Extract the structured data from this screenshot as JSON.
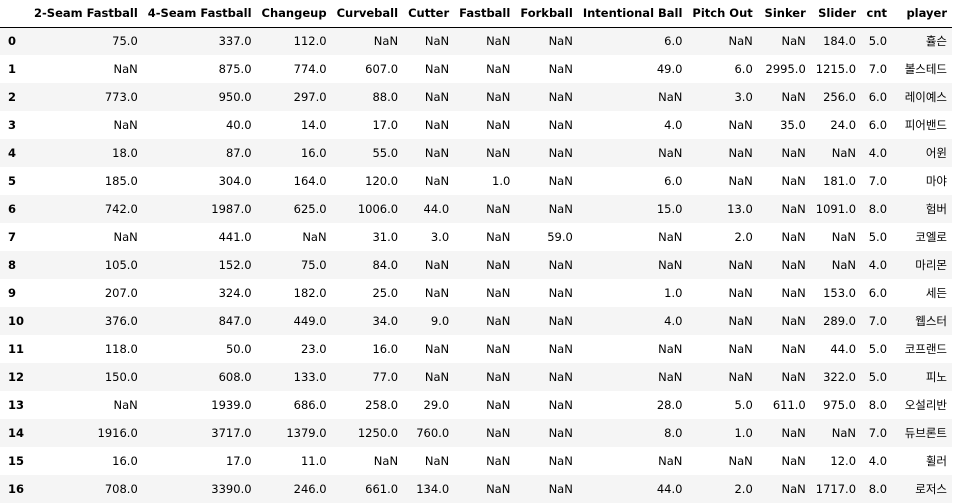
{
  "table": {
    "index_header": "",
    "columns": [
      "2-Seam Fastball",
      "4-Seam Fastball",
      "Changeup",
      "Curveball",
      "Cutter",
      "Fastball",
      "Forkball",
      "Intentional Ball",
      "Pitch Out",
      "Sinker",
      "Slider",
      "cnt",
      "player"
    ],
    "rows": [
      {
        "index": "0",
        "cells": [
          "75.0",
          "337.0",
          "112.0",
          "NaN",
          "NaN",
          "NaN",
          "NaN",
          "6.0",
          "NaN",
          "NaN",
          "184.0",
          "5.0",
          "휼슨"
        ]
      },
      {
        "index": "1",
        "cells": [
          "NaN",
          "875.0",
          "774.0",
          "607.0",
          "NaN",
          "NaN",
          "NaN",
          "49.0",
          "6.0",
          "2995.0",
          "1215.0",
          "7.0",
          "볼스테드"
        ]
      },
      {
        "index": "2",
        "cells": [
          "773.0",
          "950.0",
          "297.0",
          "88.0",
          "NaN",
          "NaN",
          "NaN",
          "NaN",
          "3.0",
          "NaN",
          "256.0",
          "6.0",
          "레이예스"
        ]
      },
      {
        "index": "3",
        "cells": [
          "NaN",
          "40.0",
          "14.0",
          "17.0",
          "NaN",
          "NaN",
          "NaN",
          "4.0",
          "NaN",
          "35.0",
          "24.0",
          "6.0",
          "피어밴드"
        ]
      },
      {
        "index": "4",
        "cells": [
          "18.0",
          "87.0",
          "16.0",
          "55.0",
          "NaN",
          "NaN",
          "NaN",
          "NaN",
          "NaN",
          "NaN",
          "NaN",
          "4.0",
          "어윈"
        ]
      },
      {
        "index": "5",
        "cells": [
          "185.0",
          "304.0",
          "164.0",
          "120.0",
          "NaN",
          "1.0",
          "NaN",
          "6.0",
          "NaN",
          "NaN",
          "181.0",
          "7.0",
          "마야"
        ]
      },
      {
        "index": "6",
        "cells": [
          "742.0",
          "1987.0",
          "625.0",
          "1006.0",
          "44.0",
          "NaN",
          "NaN",
          "15.0",
          "13.0",
          "NaN",
          "1091.0",
          "8.0",
          "험버"
        ]
      },
      {
        "index": "7",
        "cells": [
          "NaN",
          "441.0",
          "NaN",
          "31.0",
          "3.0",
          "NaN",
          "59.0",
          "NaN",
          "2.0",
          "NaN",
          "NaN",
          "5.0",
          "코엘로"
        ]
      },
      {
        "index": "8",
        "cells": [
          "105.0",
          "152.0",
          "75.0",
          "84.0",
          "NaN",
          "NaN",
          "NaN",
          "NaN",
          "NaN",
          "NaN",
          "NaN",
          "4.0",
          "마리몬"
        ]
      },
      {
        "index": "9",
        "cells": [
          "207.0",
          "324.0",
          "182.0",
          "25.0",
          "NaN",
          "NaN",
          "NaN",
          "1.0",
          "NaN",
          "NaN",
          "153.0",
          "6.0",
          "세든"
        ]
      },
      {
        "index": "10",
        "cells": [
          "376.0",
          "847.0",
          "449.0",
          "34.0",
          "9.0",
          "NaN",
          "NaN",
          "4.0",
          "NaN",
          "NaN",
          "289.0",
          "7.0",
          "웹스터"
        ]
      },
      {
        "index": "11",
        "cells": [
          "118.0",
          "50.0",
          "23.0",
          "16.0",
          "NaN",
          "NaN",
          "NaN",
          "NaN",
          "NaN",
          "NaN",
          "44.0",
          "5.0",
          "코프랜드"
        ]
      },
      {
        "index": "12",
        "cells": [
          "150.0",
          "608.0",
          "133.0",
          "77.0",
          "NaN",
          "NaN",
          "NaN",
          "NaN",
          "NaN",
          "NaN",
          "322.0",
          "5.0",
          "피노"
        ]
      },
      {
        "index": "13",
        "cells": [
          "NaN",
          "1939.0",
          "686.0",
          "258.0",
          "29.0",
          "NaN",
          "NaN",
          "28.0",
          "5.0",
          "611.0",
          "975.0",
          "8.0",
          "오설리반"
        ]
      },
      {
        "index": "14",
        "cells": [
          "1916.0",
          "3717.0",
          "1379.0",
          "1250.0",
          "760.0",
          "NaN",
          "NaN",
          "8.0",
          "1.0",
          "NaN",
          "NaN",
          "7.0",
          "듀브론트"
        ]
      },
      {
        "index": "15",
        "cells": [
          "16.0",
          "17.0",
          "11.0",
          "NaN",
          "NaN",
          "NaN",
          "NaN",
          "NaN",
          "NaN",
          "NaN",
          "12.0",
          "4.0",
          "휠러"
        ]
      },
      {
        "index": "16",
        "cells": [
          "708.0",
          "3390.0",
          "246.0",
          "661.0",
          "134.0",
          "NaN",
          "NaN",
          "44.0",
          "2.0",
          "NaN",
          "1717.0",
          "8.0",
          "로저스"
        ]
      }
    ]
  },
  "colors": {
    "stripe_row": "#f5f5f5",
    "plain_row": "#ffffff",
    "header_rule": "#000000",
    "text": "#000000"
  }
}
